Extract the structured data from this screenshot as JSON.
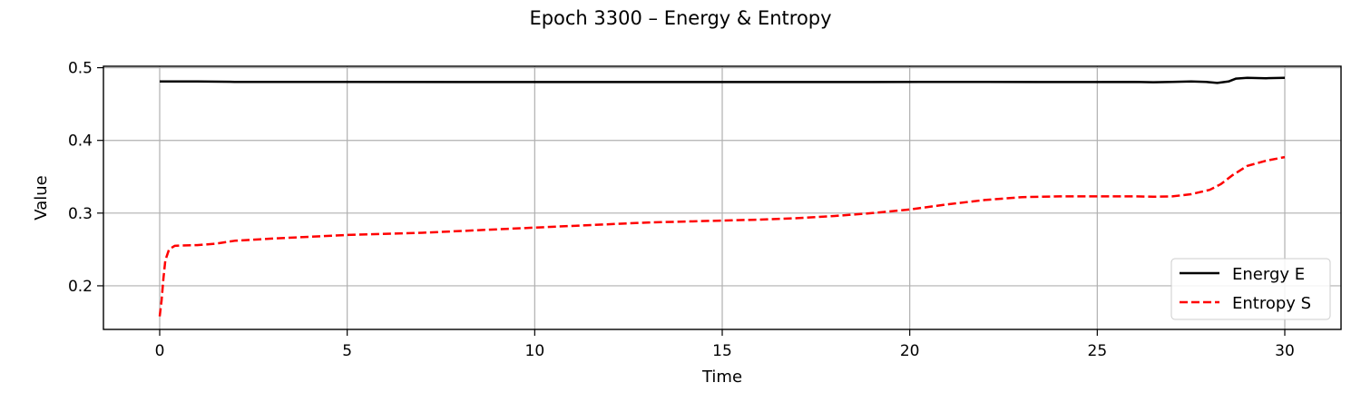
{
  "chart_data": {
    "type": "line",
    "title": "Epoch 3300 – Energy & Entropy",
    "xlabel": "Time",
    "ylabel": "Value",
    "xlim": [
      -1.5,
      31.5
    ],
    "ylim": [
      0.14,
      0.502
    ],
    "xticks": [
      0,
      5,
      10,
      15,
      20,
      25,
      30
    ],
    "yticks": [
      0.2,
      0.3,
      0.4,
      0.5
    ],
    "xtick_labels": [
      "0",
      "5",
      "10",
      "15",
      "20",
      "25",
      "30"
    ],
    "ytick_labels": [
      "0.2",
      "0.3",
      "0.4",
      "0.5"
    ],
    "grid": true,
    "legend_position": "lower-right",
    "series": [
      {
        "name": "Energy E",
        "color": "#000000",
        "dash": "solid",
        "x": [
          0,
          1,
          2,
          3,
          5,
          8,
          10,
          13,
          16,
          19,
          22,
          24,
          25,
          26,
          26.5,
          27,
          27.5,
          27.9,
          28.2,
          28.5,
          28.7,
          29,
          29.5,
          30
        ],
        "y": [
          0.481,
          0.481,
          0.4805,
          0.4805,
          0.4805,
          0.4803,
          0.4803,
          0.4803,
          0.4803,
          0.4803,
          0.4805,
          0.4803,
          0.4803,
          0.4805,
          0.48,
          0.4805,
          0.481,
          0.4805,
          0.479,
          0.481,
          0.485,
          0.486,
          0.4855,
          0.486
        ]
      },
      {
        "name": "Entropy S",
        "color": "#ff0000",
        "dash": "dashed",
        "x": [
          0,
          0.05,
          0.1,
          0.15,
          0.25,
          0.4,
          0.6,
          1.0,
          1.5,
          2,
          3,
          5,
          7,
          10,
          13,
          16,
          17,
          18,
          19,
          20,
          21,
          22,
          23,
          24,
          25,
          26,
          26.5,
          27,
          27.5,
          28,
          28.3,
          28.6,
          29,
          29.5,
          30
        ],
        "y": [
          0.158,
          0.18,
          0.21,
          0.235,
          0.25,
          0.255,
          0.2555,
          0.256,
          0.258,
          0.262,
          0.265,
          0.27,
          0.273,
          0.28,
          0.287,
          0.291,
          0.293,
          0.296,
          0.3,
          0.305,
          0.312,
          0.318,
          0.322,
          0.323,
          0.323,
          0.323,
          0.3225,
          0.323,
          0.326,
          0.332,
          0.34,
          0.352,
          0.365,
          0.372,
          0.377
        ]
      }
    ]
  }
}
